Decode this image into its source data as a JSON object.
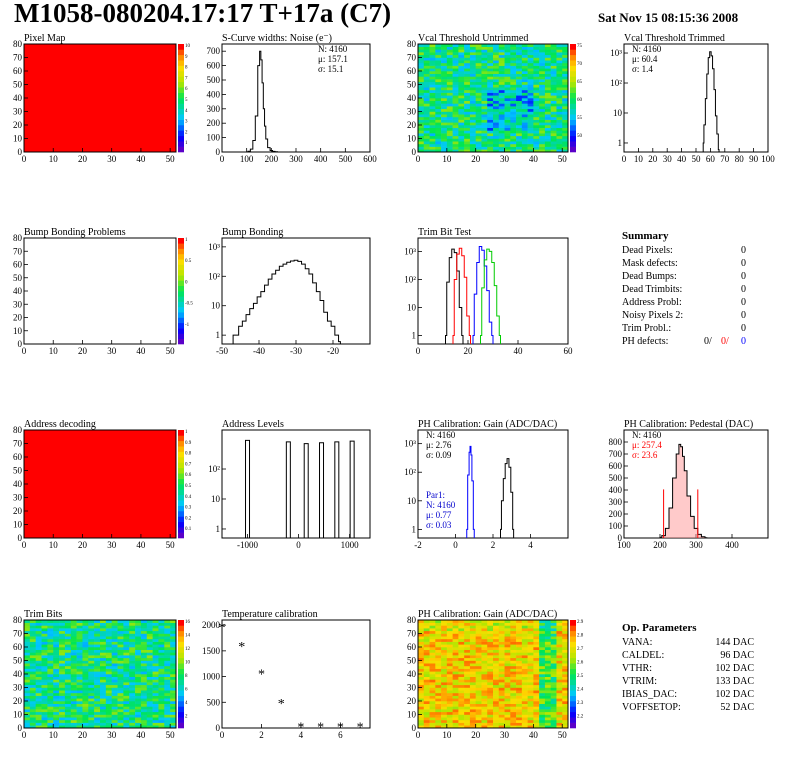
{
  "header": {
    "title": "M1058-080204.17:17 T+17a (C7)",
    "date": "Sat Nov 15 08:15:36 2008"
  },
  "colors": {
    "histogram_line": "#000000",
    "trim_red": "#ff0000",
    "trim_blue": "#0000ff",
    "trim_green": "#00cc00",
    "par1_text": "#0000cc",
    "pedestal_fill": "#ff0000",
    "map_red": "#ff0000"
  },
  "chart_data": [
    {
      "id": "pixel-map",
      "type": "heatmap",
      "title": "Pixel Map",
      "xlim": [
        0,
        52
      ],
      "ylim": [
        0,
        80
      ],
      "fill": "uniform-red",
      "xticks": [
        "0",
        "10",
        "20",
        "30",
        "40",
        "50"
      ],
      "yticks": [
        "0",
        "10",
        "20",
        "30",
        "40",
        "50",
        "60",
        "70",
        "80"
      ],
      "palette_ticks": [
        "1",
        "2",
        "3",
        "4",
        "5",
        "6",
        "7",
        "8",
        "9",
        "10"
      ]
    },
    {
      "id": "scurve-noise",
      "type": "line",
      "title": "S-Curve widths: Noise (e⁻)",
      "xlim": [
        0,
        600
      ],
      "ylim": [
        0,
        750
      ],
      "log_y": false,
      "xticks": [
        "0",
        "100",
        "200",
        "300",
        "400",
        "500",
        "600"
      ],
      "yticks": [
        "0",
        "100",
        "200",
        "300",
        "400",
        "500",
        "600",
        "700"
      ],
      "stats": [
        "N: 4160",
        "μ: 157.1",
        "σ: 15.1"
      ],
      "x": [
        100,
        110,
        120,
        130,
        140,
        150,
        155,
        160,
        165,
        170,
        175,
        180,
        190,
        200,
        210,
        220,
        230
      ],
      "y": [
        0,
        5,
        20,
        80,
        250,
        600,
        700,
        640,
        480,
        300,
        180,
        90,
        30,
        10,
        4,
        2,
        0
      ]
    },
    {
      "id": "vcal-untrimmed",
      "type": "heatmap",
      "title": "Vcal Threshold Untrimmed",
      "xlim": [
        0,
        52
      ],
      "ylim": [
        0,
        80
      ],
      "fill": "noise-green",
      "xticks": [
        "0",
        "10",
        "20",
        "30",
        "40",
        "50"
      ],
      "yticks": [
        "0",
        "10",
        "20",
        "30",
        "40",
        "50",
        "60",
        "70",
        "80"
      ],
      "palette_ticks": [
        "50",
        "55",
        "60",
        "65",
        "70",
        "75"
      ]
    },
    {
      "id": "vcal-trimmed",
      "type": "line",
      "title": "Vcal Threshold Trimmed",
      "xlim": [
        0,
        100
      ],
      "ylim": [
        0.5,
        2000
      ],
      "log_y": true,
      "xticks": [
        "0",
        "10",
        "20",
        "30",
        "40",
        "50",
        "60",
        "70",
        "80",
        "90",
        "100"
      ],
      "yticks": [
        "1",
        "10",
        "10²",
        "10³"
      ],
      "stats": [
        "N: 4160",
        "μ: 60.4",
        "σ: 1.4"
      ],
      "x": [
        55,
        56,
        57,
        58,
        59,
        60,
        61,
        62,
        63,
        64,
        65,
        66
      ],
      "y": [
        1,
        4,
        30,
        200,
        700,
        1100,
        800,
        300,
        60,
        8,
        2,
        0.6
      ]
    },
    {
      "id": "bump-problems",
      "type": "heatmap",
      "title": "Bump Bonding Problems",
      "xlim": [
        0,
        52
      ],
      "ylim": [
        0,
        80
      ],
      "fill": "empty",
      "xticks": [
        "0",
        "10",
        "20",
        "30",
        "40",
        "50"
      ],
      "yticks": [
        "0",
        "10",
        "20",
        "30",
        "40",
        "50",
        "60",
        "70",
        "80"
      ],
      "palette_ticks": [
        "-1",
        "-0.5",
        "0",
        "0.5",
        "1"
      ]
    },
    {
      "id": "bump-bonding",
      "type": "line",
      "title": "Bump Bonding",
      "xlim": [
        -50,
        -10
      ],
      "ylim": [
        0.5,
        2000
      ],
      "log_y": true,
      "xticks": [
        "-50",
        "-40",
        "-30",
        "-20"
      ],
      "yticks": [
        "1",
        "10",
        "10²",
        "10³"
      ],
      "x": [
        -47,
        -46,
        -45,
        -44,
        -43,
        -42,
        -41,
        -40,
        -39,
        -38,
        -37,
        -36,
        -35,
        -34,
        -33,
        -32,
        -31,
        -30,
        -29,
        -28,
        -27,
        -26,
        -25,
        -24,
        -23,
        -22,
        -21,
        -20,
        -19,
        -18
      ],
      "y": [
        1,
        1,
        2,
        3,
        5,
        8,
        12,
        20,
        30,
        50,
        80,
        120,
        160,
        220,
        260,
        300,
        330,
        350,
        320,
        260,
        180,
        120,
        60,
        30,
        15,
        6,
        3,
        2,
        1,
        0.6
      ]
    },
    {
      "id": "trim-bit-test",
      "type": "line",
      "title": "Trim Bit Test",
      "xlim": [
        0,
        60
      ],
      "ylim": [
        0.5,
        3000
      ],
      "log_y": true,
      "xticks": [
        "0",
        "20",
        "40",
        "60"
      ],
      "yticks": [
        "1",
        "10",
        "10²",
        "10³"
      ],
      "series": [
        {
          "color": "black",
          "x": [
            11,
            12,
            13,
            14,
            15,
            16,
            17,
            18
          ],
          "y": [
            1,
            80,
            600,
            1200,
            900,
            200,
            10,
            1
          ]
        },
        {
          "color": "red",
          "x": [
            14,
            15,
            16,
            17,
            18,
            19,
            20,
            21
          ],
          "y": [
            1,
            100,
            800,
            1300,
            700,
            120,
            5,
            1
          ]
        },
        {
          "color": "blue",
          "x": [
            22,
            23,
            24,
            25,
            26,
            27,
            28,
            29,
            30
          ],
          "y": [
            1,
            30,
            400,
            1500,
            1100,
            300,
            40,
            3,
            1
          ]
        },
        {
          "color": "green",
          "x": [
            25,
            26,
            27,
            28,
            29,
            30,
            31,
            32,
            33
          ],
          "y": [
            1,
            50,
            500,
            1200,
            1000,
            400,
            60,
            5,
            1
          ]
        }
      ]
    },
    {
      "id": "summary",
      "type": "table",
      "title": "Summary",
      "rows": [
        {
          "label": "Dead Pixels:",
          "value": "0"
        },
        {
          "label": "Mask defects:",
          "value": "0"
        },
        {
          "label": "Dead Bumps:",
          "value": "0"
        },
        {
          "label": "Dead Trimbits:",
          "value": "0"
        },
        {
          "label": "Address Probl:",
          "value": "0"
        },
        {
          "label": "Noisy Pixels 2:",
          "value": "0"
        },
        {
          "label": "Trim Probl.:",
          "value": "0"
        }
      ],
      "ph_defects": {
        "label": "PH defects:",
        "black": "0/",
        "red": "0/",
        "blue": "0"
      }
    },
    {
      "id": "address-decoding",
      "type": "heatmap",
      "title": "Address decoding",
      "xlim": [
        0,
        52
      ],
      "ylim": [
        0,
        80
      ],
      "fill": "uniform-red",
      "xticks": [
        "0",
        "10",
        "20",
        "30",
        "40",
        "50"
      ],
      "yticks": [
        "0",
        "10",
        "20",
        "30",
        "40",
        "50",
        "60",
        "70",
        "80"
      ],
      "palette_ticks": [
        "0.1",
        "0.2",
        "0.3",
        "0.4",
        "0.5",
        "0.6",
        "0.7",
        "0.8",
        "0.9",
        "1"
      ]
    },
    {
      "id": "address-levels",
      "type": "line",
      "title": "Address Levels",
      "xlim": [
        -1500,
        1400
      ],
      "ylim": [
        0.5,
        2000
      ],
      "log_y": true,
      "xticks": [
        "-1000",
        "0",
        "1000"
      ],
      "yticks": [
        "1",
        "10",
        "10²"
      ],
      "peaks": [
        -1000,
        -200,
        150,
        450,
        750,
        1050
      ],
      "peak_heights": [
        900,
        800,
        700,
        750,
        800,
        850
      ]
    },
    {
      "id": "ph-gain",
      "type": "line",
      "title": "PH Calibration: Gain (ADC/DAC)",
      "xlim": [
        -2,
        6
      ],
      "ylim": [
        0.5,
        3000
      ],
      "log_y": true,
      "xticks": [
        "-2",
        "0",
        "2",
        "4"
      ],
      "yticks": [
        "1",
        "10",
        "10²",
        "10³"
      ],
      "stats": [
        "N: 4160",
        "μ: 2.76",
        "σ: 0.09"
      ],
      "par1": [
        "Par1:",
        "N: 4160",
        "μ: 0.77",
        "σ: 0.03"
      ],
      "series": [
        {
          "color": "black",
          "x": [
            2.4,
            2.5,
            2.6,
            2.7,
            2.8,
            2.9,
            3.0,
            3.1
          ],
          "y": [
            1,
            10,
            60,
            200,
            300,
            150,
            20,
            1
          ]
        },
        {
          "color": "blue",
          "x": [
            0.6,
            0.7,
            0.75,
            0.8,
            0.85,
            0.9,
            1.0
          ],
          "y": [
            1,
            80,
            500,
            800,
            400,
            50,
            1
          ]
        }
      ]
    },
    {
      "id": "ph-pedestal",
      "type": "line",
      "title": "PH Calibration: Pedestal (DAC)",
      "xlim": [
        100,
        500
      ],
      "ylim": [
        0,
        900
      ],
      "log_y": false,
      "xticks": [
        "100",
        "200",
        "300",
        "400"
      ],
      "yticks": [
        "0",
        "100",
        "200",
        "300",
        "400",
        "500",
        "600",
        "700",
        "800"
      ],
      "stats": [
        "N: 4160",
        "μ: 257.4",
        "σ: 23.6"
      ],
      "x": [
        200,
        210,
        220,
        230,
        240,
        250,
        255,
        260,
        265,
        270,
        280,
        290,
        300,
        310,
        320,
        330
      ],
      "y": [
        5,
        20,
        80,
        250,
        500,
        700,
        780,
        760,
        680,
        560,
        350,
        180,
        80,
        30,
        10,
        2
      ],
      "markers": [
        210,
        305
      ]
    },
    {
      "id": "trim-bits",
      "type": "heatmap",
      "title": "Trim Bits",
      "xlim": [
        0,
        52
      ],
      "ylim": [
        0,
        80
      ],
      "fill": "noise-green",
      "xticks": [
        "0",
        "10",
        "20",
        "30",
        "40",
        "50"
      ],
      "yticks": [
        "0",
        "10",
        "20",
        "30",
        "40",
        "50",
        "60",
        "70",
        "80"
      ],
      "palette_ticks": [
        "2",
        "4",
        "6",
        "8",
        "10",
        "12",
        "14",
        "16"
      ]
    },
    {
      "id": "temperature-calibration",
      "type": "scatter",
      "title": "Temperature calibration",
      "xlim": [
        0,
        7.5
      ],
      "ylim": [
        0,
        2100
      ],
      "log_y": false,
      "xticks": [
        "0",
        "2",
        "4",
        "6"
      ],
      "yticks": [
        "0",
        "500",
        "1000",
        "1500",
        "2000"
      ],
      "x": [
        0,
        1,
        2,
        3,
        4,
        5,
        6,
        7
      ],
      "y": [
        1960,
        1590,
        1060,
        490,
        30,
        30,
        30,
        30
      ]
    },
    {
      "id": "ph-gain-map",
      "type": "heatmap",
      "title": "PH Calibration: Gain (ADC/DAC)",
      "xlim": [
        0,
        52
      ],
      "ylim": [
        0,
        80
      ],
      "fill": "noise-red",
      "xticks": [
        "0",
        "10",
        "20",
        "30",
        "40",
        "50"
      ],
      "yticks": [
        "0",
        "10",
        "20",
        "30",
        "40",
        "50",
        "60",
        "70",
        "80"
      ],
      "palette_ticks": [
        "2.2",
        "2.3",
        "2.4",
        "2.5",
        "2.6",
        "2.7",
        "2.8",
        "2.9"
      ]
    }
  ],
  "op_parameters": {
    "title": "Op. Parameters",
    "rows": [
      {
        "label": "VANA:",
        "value": "144 DAC"
      },
      {
        "label": "CALDEL:",
        "value": "96 DAC"
      },
      {
        "label": "VTHR:",
        "value": "102 DAC"
      },
      {
        "label": "VTRIM:",
        "value": "133 DAC"
      },
      {
        "label": "IBIAS_DAC:",
        "value": "102 DAC"
      },
      {
        "label": "VOFFSETOP:",
        "value": "52 DAC"
      }
    ]
  }
}
